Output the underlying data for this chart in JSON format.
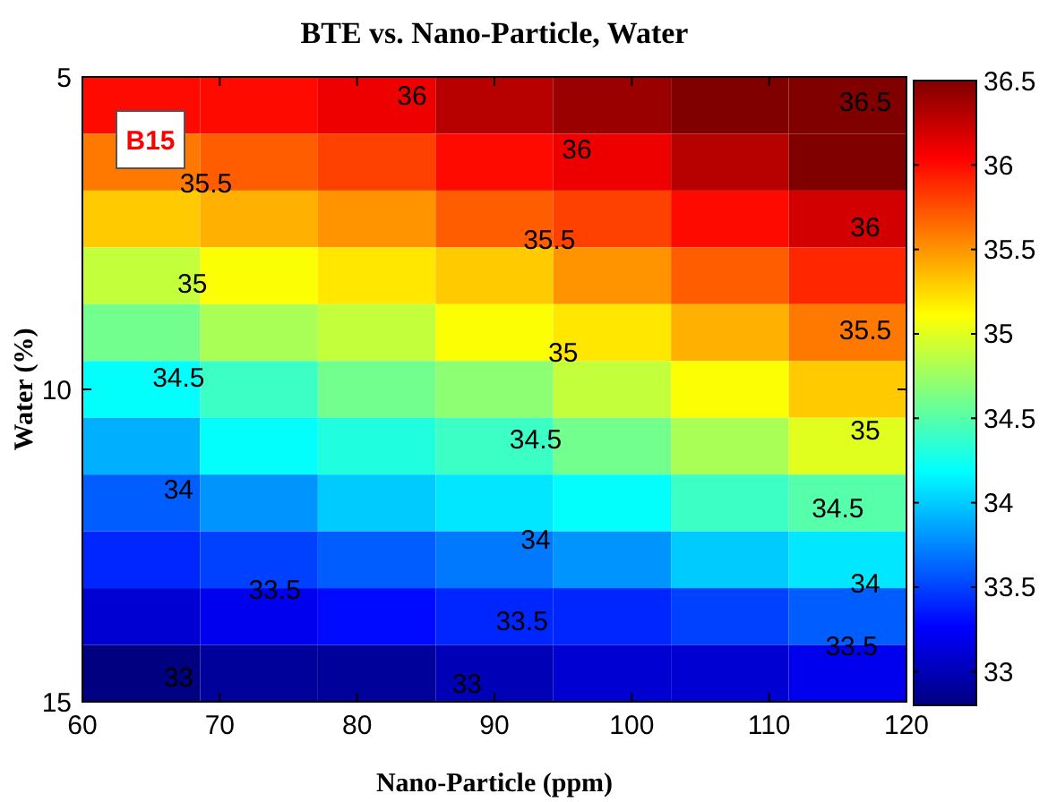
{
  "chart_data": {
    "type": "heatmap",
    "title": "BTE vs. Nano-Particle, Water",
    "xlabel": "Nano-Particle (ppm)",
    "ylabel": "Water (%)",
    "xlim": [
      60,
      120
    ],
    "ylim": [
      15,
      5
    ],
    "xticks": [
      60,
      70,
      80,
      90,
      100,
      110,
      120
    ],
    "yticks": [
      5,
      10,
      15
    ],
    "clim": [
      32.8,
      36.5
    ],
    "cticks": [
      33,
      33.5,
      34,
      34.5,
      35,
      35.5,
      36,
      36.5
    ],
    "cells": [
      [
        36.0,
        36.0,
        36.1,
        36.3,
        36.4,
        36.5,
        36.5
      ],
      [
        35.6,
        35.7,
        35.8,
        36.0,
        36.1,
        36.3,
        36.5
      ],
      [
        35.3,
        35.4,
        35.5,
        35.7,
        35.8,
        36.0,
        36.2
      ],
      [
        34.9,
        35.1,
        35.2,
        35.3,
        35.5,
        35.7,
        35.9
      ],
      [
        34.6,
        34.8,
        34.9,
        35.1,
        35.2,
        35.4,
        35.6
      ],
      [
        34.2,
        34.4,
        34.6,
        34.7,
        34.9,
        35.1,
        35.3
      ],
      [
        33.9,
        34.2,
        34.3,
        34.4,
        34.6,
        34.8,
        35.0
      ],
      [
        33.6,
        33.8,
        34.0,
        34.1,
        34.2,
        34.4,
        34.5
      ],
      [
        33.4,
        33.5,
        33.6,
        33.7,
        33.8,
        34.0,
        34.1
      ],
      [
        33.1,
        33.2,
        33.3,
        33.4,
        33.4,
        33.5,
        33.6
      ],
      [
        32.8,
        32.9,
        32.9,
        33.0,
        33.1,
        33.1,
        33.2
      ]
    ],
    "annotations": [
      "B15",
      "36",
      "36",
      "36",
      "36.5",
      "35.5",
      "35.5",
      "35.5",
      "35",
      "35",
      "35",
      "34.5",
      "34.5",
      "34.5",
      "34",
      "34",
      "34",
      "33.5",
      "33.5",
      "33.5",
      "33",
      "33"
    ]
  }
}
